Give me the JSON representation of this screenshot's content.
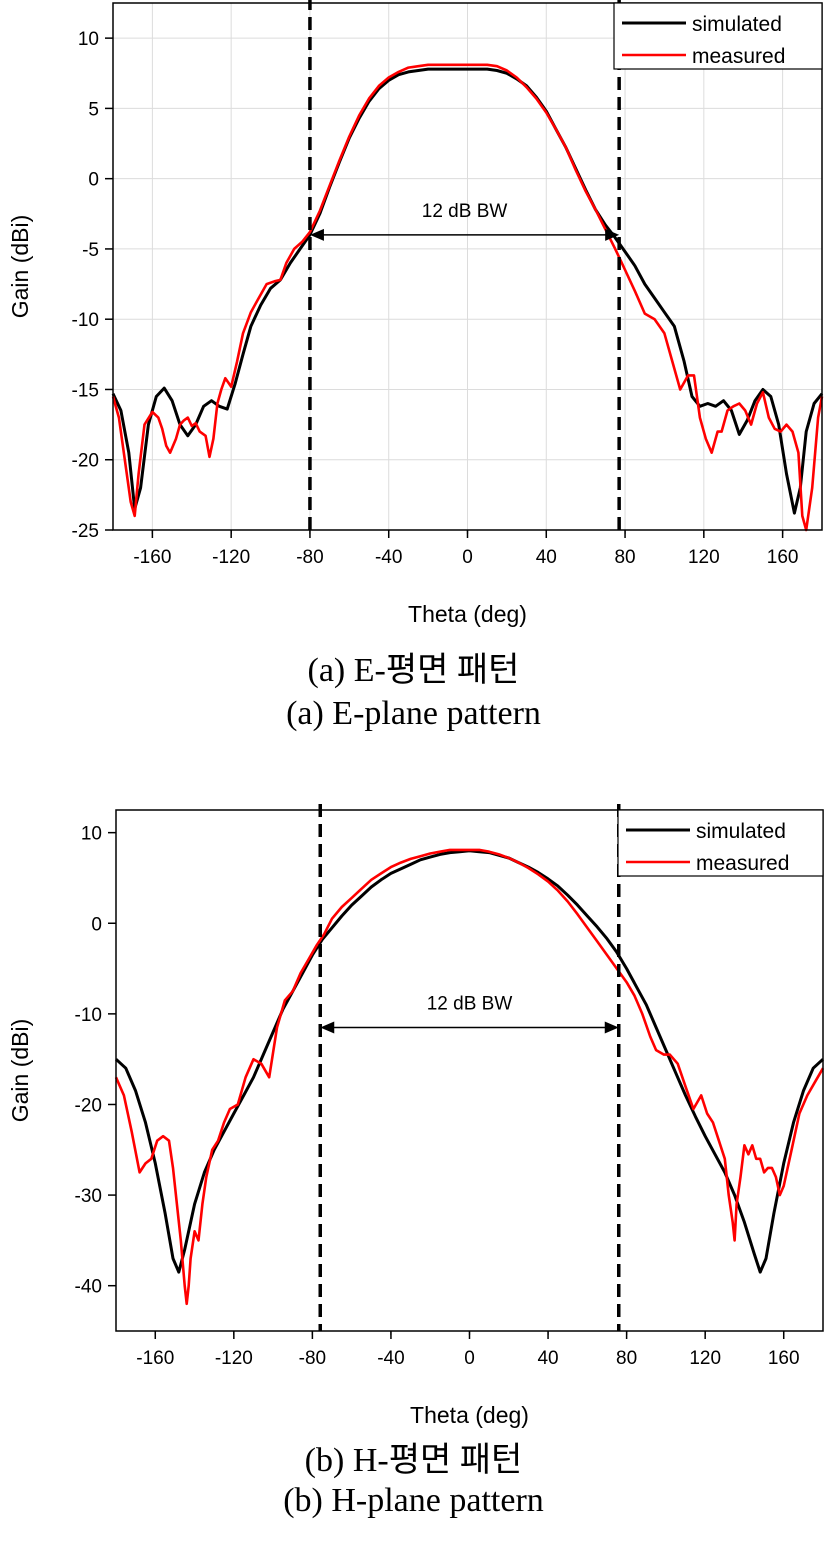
{
  "chart_data": [
    {
      "type": "line",
      "xlabel": "Theta (deg)",
      "ylabel": "Gain (dBi)",
      "xlim": [
        -180,
        180
      ],
      "ylim": [
        -25,
        12.5
      ],
      "xticks": [
        -160,
        -120,
        -80,
        -40,
        0,
        40,
        80,
        120,
        160
      ],
      "yticks": [
        -25,
        -20,
        -15,
        -10,
        -5,
        0,
        5,
        10
      ],
      "grid": true,
      "legend": "top-right",
      "annotation": {
        "text": "12 dB BW",
        "x_from": -80,
        "x_to": 77,
        "y": -4
      },
      "dashed_lines_x": [
        -80,
        77
      ],
      "caption_kr": "(a) E-평면 패턴",
      "caption_en": "(a) E-plane pattern",
      "series": [
        {
          "name": "simulated",
          "color": "#000000",
          "x": [
            -180,
            -176,
            -172,
            -169,
            -166,
            -162,
            -158,
            -154,
            -150,
            -146,
            -142,
            -138,
            -134,
            -130,
            -126,
            -122,
            -118,
            -114,
            -110,
            -105,
            -100,
            -95,
            -90,
            -85,
            -80,
            -75,
            -70,
            -65,
            -60,
            -55,
            -50,
            -45,
            -40,
            -35,
            -30,
            -25,
            -20,
            -15,
            -10,
            -5,
            0,
            5,
            10,
            15,
            20,
            25,
            30,
            35,
            40,
            45,
            50,
            55,
            60,
            65,
            70,
            75,
            80,
            85,
            90,
            95,
            100,
            105,
            110,
            114,
            118,
            122,
            126,
            130,
            134,
            138,
            142,
            146,
            150,
            154,
            158,
            162,
            166,
            169,
            172,
            176,
            180
          ],
          "y": [
            -15.3,
            -16.5,
            -19.5,
            -23.5,
            -22,
            -17.5,
            -15.5,
            -14.9,
            -15.8,
            -17.5,
            -18.3,
            -17.5,
            -16.2,
            -15.8,
            -16.2,
            -16.4,
            -14.6,
            -12.5,
            -10.5,
            -9,
            -7.8,
            -7.2,
            -6,
            -5,
            -4,
            -2.5,
            -0.6,
            1.2,
            2.9,
            4.3,
            5.5,
            6.4,
            7,
            7.4,
            7.6,
            7.7,
            7.8,
            7.8,
            7.8,
            7.8,
            7.8,
            7.8,
            7.8,
            7.7,
            7.5,
            7.1,
            6.6,
            5.8,
            4.8,
            3.5,
            2.2,
            0.7,
            -0.8,
            -2.2,
            -3.3,
            -4.2,
            -5.2,
            -6.2,
            -7.5,
            -8.5,
            -9.5,
            -10.5,
            -13,
            -15.5,
            -16.2,
            -16,
            -16.2,
            -15.8,
            -16.5,
            -18.2,
            -17.2,
            -15.8,
            -15,
            -15.5,
            -17.5,
            -21,
            -23.8,
            -22,
            -18,
            -16,
            -15.3
          ]
        },
        {
          "name": "measured",
          "color": "#ff0000",
          "x": [
            -180,
            -177,
            -174,
            -171,
            -169,
            -167,
            -164,
            -160,
            -157,
            -155,
            -153,
            -151,
            -148,
            -146,
            -144,
            -142,
            -140,
            -138,
            -136,
            -133,
            -131,
            -129,
            -127,
            -125,
            -123,
            -120,
            -117,
            -114,
            -110,
            -106,
            -102,
            -98,
            -95,
            -92,
            -88,
            -84,
            -80,
            -75,
            -70,
            -65,
            -60,
            -55,
            -50,
            -45,
            -40,
            -35,
            -30,
            -25,
            -20,
            -15,
            -10,
            -5,
            0,
            5,
            10,
            15,
            20,
            25,
            30,
            35,
            40,
            45,
            50,
            55,
            60,
            65,
            70,
            75,
            80,
            85,
            90,
            95,
            100,
            104,
            108,
            112,
            115,
            118,
            121,
            124,
            127,
            129,
            132,
            135,
            138,
            141,
            144,
            147,
            150,
            153,
            156,
            159,
            162,
            165,
            168,
            170,
            172,
            175,
            178,
            180
          ],
          "y": [
            -15.5,
            -17,
            -20,
            -23,
            -24,
            -21,
            -17.5,
            -16.6,
            -17,
            -17.8,
            -19,
            -19.5,
            -18.5,
            -17.5,
            -17.2,
            -17,
            -17.6,
            -17.4,
            -18,
            -18.3,
            -19.8,
            -18.5,
            -16,
            -15,
            -14.2,
            -14.8,
            -13,
            -11,
            -9.5,
            -8.5,
            -7.5,
            -7.3,
            -7.2,
            -6,
            -5,
            -4.5,
            -3.8,
            -2.3,
            -0.5,
            1.3,
            3,
            4.5,
            5.7,
            6.6,
            7.2,
            7.6,
            7.9,
            8,
            8.1,
            8.1,
            8.1,
            8.1,
            8.1,
            8.1,
            8.1,
            8,
            7.7,
            7.2,
            6.5,
            5.7,
            4.7,
            3.5,
            2.2,
            0.6,
            -0.9,
            -2.2,
            -3.6,
            -5,
            -6.5,
            -8,
            -9.6,
            -10,
            -11,
            -13,
            -15,
            -14,
            -14,
            -17,
            -18.5,
            -19.5,
            -18,
            -18,
            -16.5,
            -16.2,
            -16,
            -16.5,
            -17.5,
            -16,
            -15.2,
            -17,
            -17.8,
            -18,
            -17.5,
            -18,
            -19.5,
            -24,
            -25,
            -22,
            -17,
            -15.5
          ]
        }
      ]
    },
    {
      "type": "line",
      "xlabel": "Theta (deg)",
      "ylabel": "Gain (dBi)",
      "xlim": [
        -180,
        180
      ],
      "ylim": [
        -45,
        12.5
      ],
      "xticks": [
        -160,
        -120,
        -80,
        -40,
        0,
        40,
        80,
        120,
        160
      ],
      "yticks": [
        -40,
        -30,
        -20,
        -10,
        0,
        10
      ],
      "grid": false,
      "legend": "top-right",
      "annotation": {
        "text": "12 dB BW",
        "x_from": -76,
        "x_to": 76,
        "y": -11.5
      },
      "dashed_lines_x": [
        -76,
        76
      ],
      "caption_kr": "(b) H-평면 패턴",
      "caption_en": "(b) H-plane pattern",
      "series": [
        {
          "name": "simulated",
          "color": "#000000",
          "x": [
            -180,
            -175,
            -170,
            -165,
            -160,
            -155,
            -151,
            -148,
            -145,
            -140,
            -135,
            -130,
            -125,
            -120,
            -115,
            -110,
            -105,
            -100,
            -95,
            -90,
            -85,
            -80,
            -75,
            -70,
            -65,
            -60,
            -55,
            -50,
            -45,
            -40,
            -35,
            -30,
            -25,
            -20,
            -15,
            -10,
            -5,
            0,
            5,
            10,
            15,
            20,
            25,
            30,
            35,
            40,
            45,
            50,
            55,
            60,
            65,
            70,
            75,
            80,
            85,
            90,
            95,
            100,
            105,
            110,
            115,
            120,
            125,
            130,
            135,
            140,
            145,
            148,
            151,
            155,
            160,
            165,
            170,
            175,
            180
          ],
          "y": [
            -15,
            -16,
            -18.5,
            -22,
            -26.5,
            -32,
            -37,
            -38.5,
            -36,
            -31,
            -27.5,
            -25,
            -23,
            -21,
            -19,
            -17,
            -14.5,
            -12,
            -9.5,
            -7.5,
            -5.5,
            -3.5,
            -1.8,
            -0.5,
            0.8,
            2,
            3,
            4,
            4.8,
            5.5,
            6,
            6.5,
            7,
            7.3,
            7.6,
            7.8,
            7.9,
            8,
            7.9,
            7.8,
            7.5,
            7.2,
            6.7,
            6.2,
            5.6,
            4.9,
            4.1,
            3.1,
            2,
            0.8,
            -0.4,
            -1.7,
            -3.2,
            -5,
            -7,
            -9,
            -11.5,
            -14,
            -16.5,
            -19,
            -21.3,
            -23.5,
            -25.5,
            -27.5,
            -30,
            -33,
            -36.5,
            -38.5,
            -37,
            -32,
            -26.5,
            -22,
            -18.5,
            -16,
            -15
          ]
        },
        {
          "name": "measured",
          "color": "#ff0000",
          "x": [
            -180,
            -176,
            -172,
            -168,
            -165,
            -162,
            -159,
            -156,
            -153,
            -151,
            -149,
            -147,
            -145,
            -144,
            -143,
            -142,
            -140,
            -138,
            -136,
            -134,
            -131,
            -128,
            -125,
            -122,
            -118,
            -114,
            -110,
            -106,
            -102,
            -98,
            -94,
            -90,
            -86,
            -82,
            -78,
            -74,
            -70,
            -65,
            -60,
            -55,
            -50,
            -45,
            -40,
            -35,
            -30,
            -25,
            -20,
            -15,
            -10,
            -5,
            0,
            5,
            10,
            15,
            20,
            25,
            30,
            35,
            40,
            45,
            50,
            55,
            60,
            65,
            70,
            75,
            80,
            84,
            88,
            92,
            95,
            99,
            102,
            106,
            110,
            114,
            118,
            121,
            124,
            127,
            130,
            132,
            134,
            135,
            136,
            138,
            140,
            142,
            144,
            146,
            148,
            150,
            152,
            154,
            156,
            158,
            160,
            164,
            168,
            172,
            176,
            180
          ],
          "y": [
            -17,
            -19,
            -23,
            -27.5,
            -26.5,
            -26,
            -24,
            -23.5,
            -24,
            -27,
            -31,
            -35,
            -40,
            -42,
            -40,
            -37,
            -34,
            -35,
            -31,
            -28,
            -25,
            -24,
            -22,
            -20.5,
            -20,
            -17,
            -15,
            -15.5,
            -17,
            -11.5,
            -8.5,
            -7.5,
            -5.5,
            -4,
            -2.5,
            -1.2,
            0.5,
            1.8,
            2.8,
            3.8,
            4.8,
            5.5,
            6.2,
            6.7,
            7.1,
            7.4,
            7.7,
            7.9,
            8.1,
            8.1,
            8.1,
            8.1,
            7.9,
            7.6,
            7.2,
            6.7,
            6.1,
            5.4,
            4.6,
            3.6,
            2.4,
            1,
            -0.5,
            -2,
            -3.5,
            -5,
            -6.5,
            -8,
            -10,
            -12.5,
            -14,
            -14.5,
            -14.5,
            -15.5,
            -18,
            -20.5,
            -19,
            -21,
            -22,
            -24,
            -26,
            -30,
            -33,
            -35,
            -31,
            -28,
            -24.5,
            -25.5,
            -24.5,
            -26,
            -26,
            -27.5,
            -27,
            -27,
            -28,
            -30,
            -29,
            -25,
            -21,
            -19,
            -17.5,
            -16
          ]
        }
      ]
    }
  ]
}
